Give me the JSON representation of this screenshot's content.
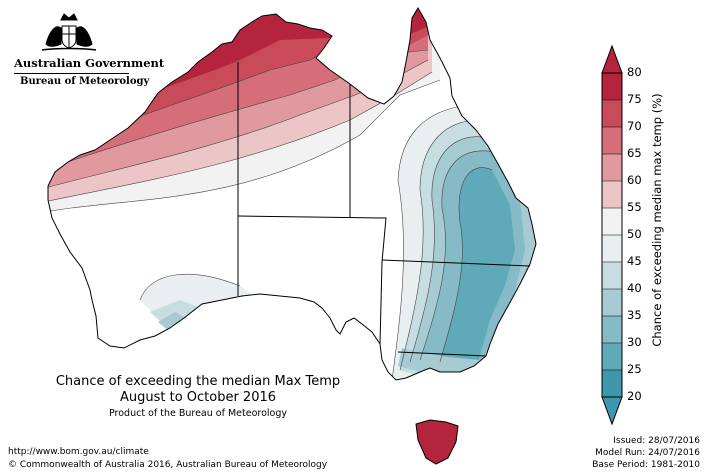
{
  "branding": {
    "agency_line1": "Australian Government",
    "agency_line2": "Bureau of Meteorology"
  },
  "title": {
    "line1": "Chance of exceeding the median Max Temp",
    "line2": "August to October 2016",
    "product": "Product of the Bureau of Meteorology"
  },
  "footer": {
    "url": "http://www.bom.gov.au/climate",
    "copyright": "© Commonwealth of Australia 2016, Australian Bureau of Meteorology"
  },
  "run_info": {
    "issued": "Issued: 28/07/2016",
    "model_run": "Model Run: 24/07/2016",
    "base_period": "Base Period: 1981-2010"
  },
  "legend": {
    "title": "Chance of exceeding median max temp (%)",
    "ticks": [
      "80",
      "75",
      "70",
      "65",
      "60",
      "55",
      "50",
      "45",
      "40",
      "35",
      "30",
      "25",
      "20"
    ],
    "colors": [
      "#b5243d",
      "#c94b5a",
      "#d56e79",
      "#e0999f",
      "#ecc5c7",
      "#f2f2f2",
      "#ffffff",
      "#e9eef1",
      "#c8dde2",
      "#a6cbd3",
      "#85bac6",
      "#5fa9b9",
      "#3d97ad"
    ]
  },
  "map": {
    "fill_colors": {
      "p80": "#b5243d",
      "p75": "#c94b5a",
      "p70": "#d56e79",
      "p65": "#e0999f",
      "p60": "#ecc5c7",
      "p55": "#f2f2f2",
      "p50": "#ffffff",
      "p45": "#e9eef1",
      "p40": "#c8dde2",
      "p35": "#a6cbd3",
      "p30": "#85bac6",
      "p25": "#5fa9b9"
    }
  }
}
